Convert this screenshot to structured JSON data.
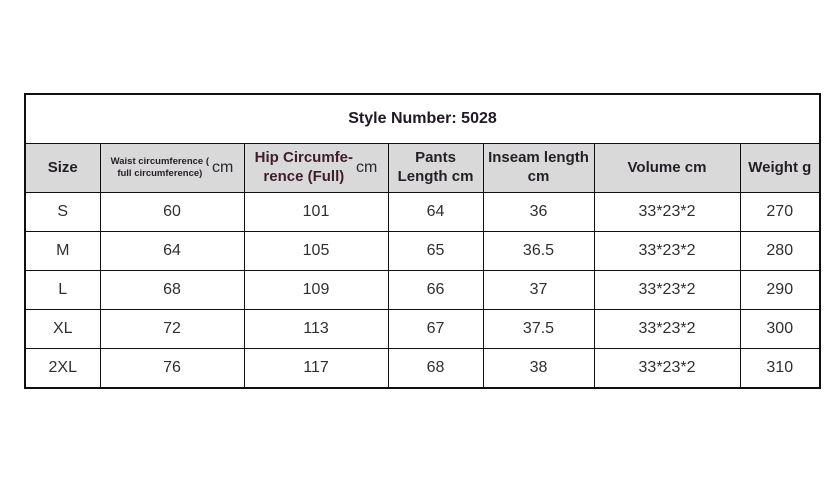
{
  "page": {
    "background": "#ffffff"
  },
  "table": {
    "title": "Style Number: 5028",
    "columns_full_labels": [
      "Size",
      "Waist circumference ( full circumference) cm",
      "Hip Circumfe-rence (Full) cm",
      "Pants Length cm",
      "Inseam length cm",
      "Volume cm",
      "Weight g"
    ],
    "headers": {
      "size": "Size",
      "waist_line1": "Waist circumference (",
      "waist_line2": "full circumference)",
      "waist_unit": "cm",
      "hip_line1": "Hip Circumfe-",
      "hip_line2": "rence (Full)",
      "hip_unit": "cm",
      "pants_line1": "Pants",
      "pants_line2": "Length cm",
      "inseam_line1": "Inseam length",
      "inseam_line2": "cm",
      "volume": "Volume cm",
      "weight": "Weight g"
    },
    "rows": [
      [
        "S",
        "60",
        "101",
        "64",
        "36",
        "33*23*2",
        "270"
      ],
      [
        "M",
        "64",
        "105",
        "65",
        "36.5",
        "33*23*2",
        "280"
      ],
      [
        "L",
        "68",
        "109",
        "66",
        "37",
        "33*23*2",
        "290"
      ],
      [
        "XL",
        "72",
        "113",
        "67",
        "37.5",
        "33*23*2",
        "300"
      ],
      [
        "2XL",
        "76",
        "117",
        "68",
        "38",
        "33*23*2",
        "310"
      ]
    ],
    "colors": {
      "header_bg": "#d9d9d9",
      "border": "#101010",
      "title_text": "#211826",
      "header_text": "#241f26",
      "header_text_accent": "#3e1d2d",
      "data_text": "#2f2f2f"
    }
  }
}
